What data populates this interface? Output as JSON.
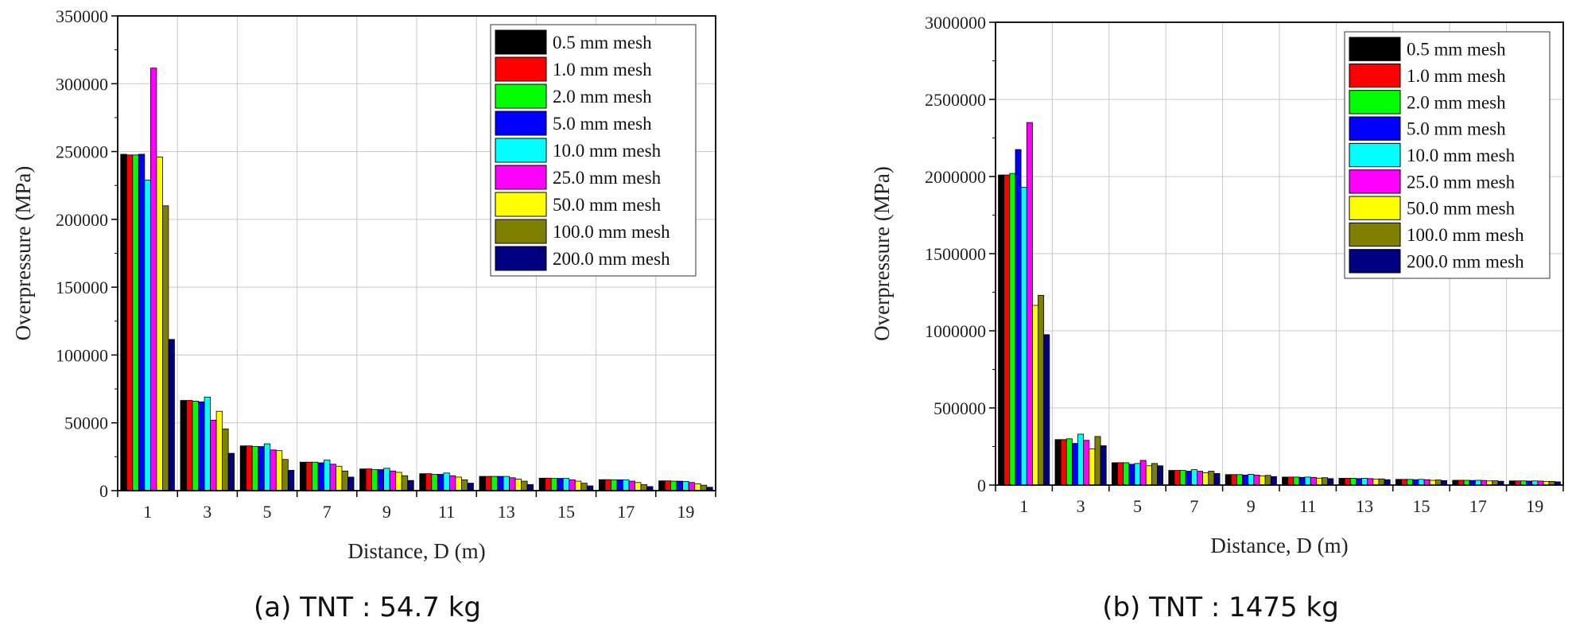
{
  "series_names": [
    "0.5 mm mesh",
    "1.0 mm mesh",
    "2.0 mm mesh",
    "5.0 mm mesh",
    "10.0 mm mesh",
    "25.0 mm mesh",
    "50.0 mm mesh",
    "100.0 mm mesh",
    "200.0 mm mesh"
  ],
  "series_colors": [
    "#000000",
    "#ff0000",
    "#00ff00",
    "#0000ff",
    "#00ffff",
    "#ff00ff",
    "#ffff00",
    "#808000",
    "#000080"
  ],
  "chart_data": [
    {
      "type": "bar",
      "caption": "(a) TNT : 54.7 kg",
      "xlabel": "Distance, D (m)",
      "ylabel": "Overpressure (MPa)",
      "ylim": [
        0,
        350000
      ],
      "yticks": [
        "0",
        "50000",
        "100000",
        "150000",
        "200000",
        "250000",
        "300000",
        "350000"
      ],
      "categories": [
        "1",
        "3",
        "5",
        "7",
        "9",
        "11",
        "13",
        "15",
        "17",
        "19"
      ],
      "grid": true,
      "legend": "top-right",
      "series": [
        {
          "name": "0.5 mm mesh",
          "values": [
            248000,
            66500,
            33000,
            21000,
            16000,
            12500,
            10500,
            9200,
            8100,
            7200
          ]
        },
        {
          "name": "1.0 mm mesh",
          "values": [
            247500,
            66500,
            33000,
            21000,
            16000,
            12500,
            10500,
            9200,
            8100,
            7200
          ]
        },
        {
          "name": "2.0 mm mesh",
          "values": [
            247500,
            66000,
            32500,
            21000,
            15500,
            12000,
            10500,
            9000,
            8000,
            7000
          ]
        },
        {
          "name": "5.0 mm mesh",
          "values": [
            248000,
            65500,
            32500,
            20500,
            15500,
            12000,
            10500,
            9000,
            8000,
            7000
          ]
        },
        {
          "name": "10.0 mm mesh",
          "values": [
            229000,
            69000,
            34500,
            22500,
            16500,
            13000,
            10500,
            9000,
            8000,
            6800
          ]
        },
        {
          "name": "25.0 mm mesh",
          "values": [
            311500,
            52000,
            30000,
            19500,
            14500,
            11000,
            9500,
            8000,
            7000,
            6000
          ]
        },
        {
          "name": "50.0 mm mesh",
          "values": [
            246000,
            58500,
            29500,
            18000,
            13500,
            10000,
            8500,
            7000,
            6000,
            5000
          ]
        },
        {
          "name": "100.0 mm mesh",
          "values": [
            210000,
            45500,
            23000,
            14500,
            11000,
            8000,
            7000,
            5500,
            4500,
            4000
          ]
        },
        {
          "name": "200.0 mm mesh",
          "values": [
            111500,
            27500,
            15000,
            10000,
            7500,
            5500,
            4500,
            3500,
            3000,
            2500
          ]
        }
      ]
    },
    {
      "type": "bar",
      "caption": "(b) TNT : 1475 kg",
      "xlabel": "Distance, D (m)",
      "ylabel": "Overpressure (MPa)",
      "ylim": [
        0,
        3000000
      ],
      "yticks": [
        "0",
        "500000",
        "1000000",
        "1500000",
        "2000000",
        "2500000",
        "3000000"
      ],
      "categories": [
        "1",
        "3",
        "5",
        "7",
        "9",
        "11",
        "13",
        "15",
        "17",
        "19"
      ],
      "grid": true,
      "legend": "top-right",
      "series": [
        {
          "name": "0.5 mm mesh",
          "values": [
            2010000,
            295000,
            145000,
            95000,
            68000,
            52000,
            44000,
            37000,
            31000,
            27000
          ]
        },
        {
          "name": "1.0 mm mesh",
          "values": [
            2010000,
            295000,
            145000,
            95000,
            68000,
            52000,
            44000,
            37000,
            31000,
            27000
          ]
        },
        {
          "name": "2.0 mm mesh",
          "values": [
            2020000,
            300000,
            145000,
            95000,
            68000,
            52000,
            44000,
            37000,
            31000,
            27000
          ]
        },
        {
          "name": "5.0 mm mesh",
          "values": [
            2175000,
            270000,
            135000,
            90000,
            65000,
            50000,
            42000,
            35000,
            30000,
            26000
          ]
        },
        {
          "name": "10.0 mm mesh",
          "values": [
            1930000,
            330000,
            140000,
            100000,
            70000,
            52000,
            44000,
            37000,
            31000,
            27000
          ]
        },
        {
          "name": "25.0 mm mesh",
          "values": [
            2350000,
            290000,
            160000,
            90000,
            65000,
            50000,
            42000,
            35000,
            30000,
            26000
          ]
        },
        {
          "name": "50.0 mm mesh",
          "values": [
            1165000,
            235000,
            125000,
            80000,
            60000,
            45000,
            38000,
            31000,
            27000,
            23000
          ]
        },
        {
          "name": "100.0 mm mesh",
          "values": [
            1230000,
            315000,
            140000,
            90000,
            63000,
            48000,
            40000,
            33000,
            28000,
            24000
          ]
        },
        {
          "name": "200.0 mm mesh",
          "values": [
            975000,
            255000,
            125000,
            75000,
            55000,
            42000,
            35000,
            29000,
            25000,
            21000
          ]
        }
      ]
    }
  ]
}
